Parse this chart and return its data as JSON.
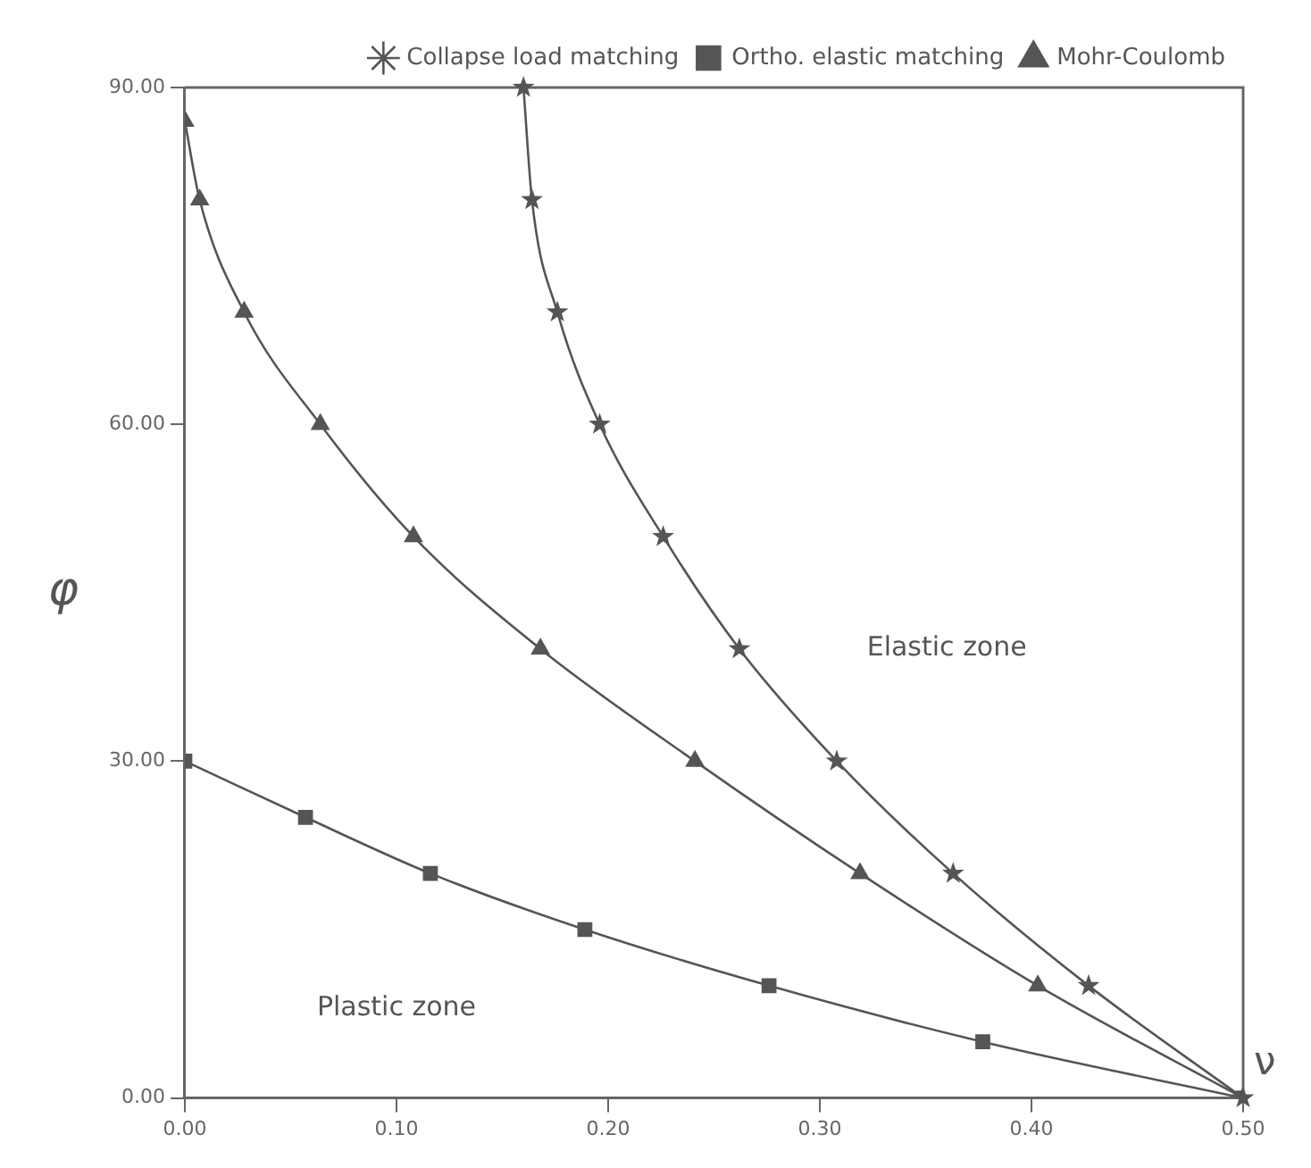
{
  "chart_data": {
    "type": "line",
    "xlabel": "ν",
    "ylabel": "φ",
    "legend": "top right",
    "grid": false,
    "xlim": [
      0,
      0.5
    ],
    "xticks": [
      {
        "value": 0,
        "label": "0.00"
      },
      {
        "value": 0.1,
        "label": "0.10"
      },
      {
        "value": 0.2,
        "label": "0.20"
      },
      {
        "value": 0.3,
        "label": "0.30"
      },
      {
        "value": 0.4,
        "label": "0.40"
      },
      {
        "value": 0.5,
        "label": "0.50"
      }
    ],
    "ylim": [
      0,
      90
    ],
    "yticks": [
      {
        "value": 0,
        "label": "0.00"
      },
      {
        "value": 30,
        "label": "30.00"
      },
      {
        "value": 60,
        "label": "60.00"
      },
      {
        "value": 90,
        "label": "90.00"
      }
    ],
    "annotations": [
      "Plastic zone",
      "Elastic zone"
    ],
    "series": [
      {
        "name": "Collapse load matching",
        "color": "#555555",
        "marker": "star",
        "x": [
          0.16,
          0.164,
          0.176,
          0.196,
          0.226,
          0.262,
          0.308,
          0.363,
          0.427,
          0.5
        ],
        "values": [
          90,
          80,
          70,
          60,
          50,
          40,
          30,
          20,
          10,
          0
        ]
      },
      {
        "name": "Ortho. elastic matching",
        "color": "#555555",
        "marker": "square",
        "x": [
          0,
          0.057,
          0.116,
          0.189,
          0.276,
          0.377,
          0.5
        ],
        "values": [
          30,
          25,
          20,
          15,
          10,
          5,
          0
        ]
      },
      {
        "name": "Mohr-Coulomb",
        "color": "#555555",
        "marker": "triangle",
        "x": [
          0,
          0.007,
          0.028,
          0.064,
          0.108,
          0.168,
          0.241,
          0.319,
          0.403,
          0.5
        ],
        "values": [
          87,
          80,
          70,
          60,
          50,
          40,
          30,
          20,
          10,
          0
        ]
      }
    ]
  }
}
